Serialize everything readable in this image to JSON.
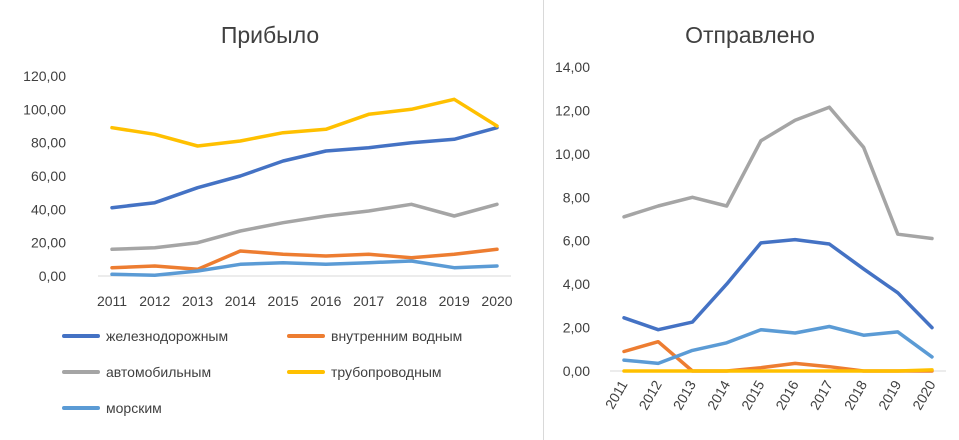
{
  "chart_data": [
    {
      "type": "line",
      "title": "Прибыло",
      "categories": [
        "2011",
        "2012",
        "2013",
        "2014",
        "2015",
        "2016",
        "2017",
        "2018",
        "2019",
        "2020"
      ],
      "y_ticks": [
        "0,00",
        "20,00",
        "40,00",
        "60,00",
        "80,00",
        "100,00",
        "120,00"
      ],
      "ylim": [
        0,
        120
      ],
      "grid": false,
      "legend": "bottom",
      "series": [
        {
          "name": "железнодорожным",
          "color": "#4472C4",
          "values": [
            41,
            44,
            53,
            60,
            69,
            75,
            77,
            80,
            82,
            89
          ]
        },
        {
          "name": "внутренним водным",
          "color": "#ED7D31",
          "values": [
            5,
            6,
            4,
            15,
            13,
            12,
            13,
            11,
            13,
            16
          ]
        },
        {
          "name": "автомобильным",
          "color": "#A5A5A5",
          "values": [
            16,
            17,
            20,
            27,
            32,
            36,
            39,
            43,
            36,
            43
          ]
        },
        {
          "name": "трубопроводным",
          "color": "#FFC000",
          "values": [
            89,
            85,
            78,
            81,
            86,
            88,
            97,
            100,
            106,
            90
          ]
        },
        {
          "name": "морским",
          "color": "#5B9BD5",
          "values": [
            1,
            0.5,
            3,
            7,
            8,
            7,
            8,
            9,
            5,
            6
          ]
        }
      ]
    },
    {
      "type": "line",
      "title": "Отправлено",
      "categories": [
        "2011",
        "2012",
        "2013",
        "2014",
        "2015",
        "2016",
        "2017",
        "2018",
        "2019",
        "2020"
      ],
      "y_ticks": [
        "0,00",
        "2,00",
        "4,00",
        "6,00",
        "8,00",
        "10,00",
        "12,00",
        "14,00"
      ],
      "ylim": [
        0,
        14
      ],
      "grid": false,
      "series": [
        {
          "name": "железнодорожным",
          "color": "#4472C4",
          "values": [
            2.45,
            1.9,
            2.25,
            4.0,
            5.9,
            6.05,
            5.85,
            4.7,
            3.6,
            2.0
          ]
        },
        {
          "name": "внутренним водным",
          "color": "#ED7D31",
          "values": [
            0.9,
            1.35,
            0.0,
            0.0,
            0.15,
            0.35,
            0.2,
            0.0,
            0.0,
            0.0
          ]
        },
        {
          "name": "автомобильным",
          "color": "#A5A5A5",
          "values": [
            7.1,
            7.6,
            8.0,
            7.6,
            10.6,
            11.55,
            12.15,
            10.3,
            6.3,
            6.1
          ]
        },
        {
          "name": "трубопроводным",
          "color": "#FFC000",
          "values": [
            0.0,
            0.0,
            0.0,
            0.0,
            0.0,
            0.0,
            0.0,
            0.0,
            0.0,
            0.05
          ]
        },
        {
          "name": "морским",
          "color": "#5B9BD5",
          "values": [
            0.5,
            0.35,
            0.95,
            1.3,
            1.9,
            1.75,
            2.05,
            1.65,
            1.8,
            0.65
          ]
        }
      ]
    }
  ]
}
